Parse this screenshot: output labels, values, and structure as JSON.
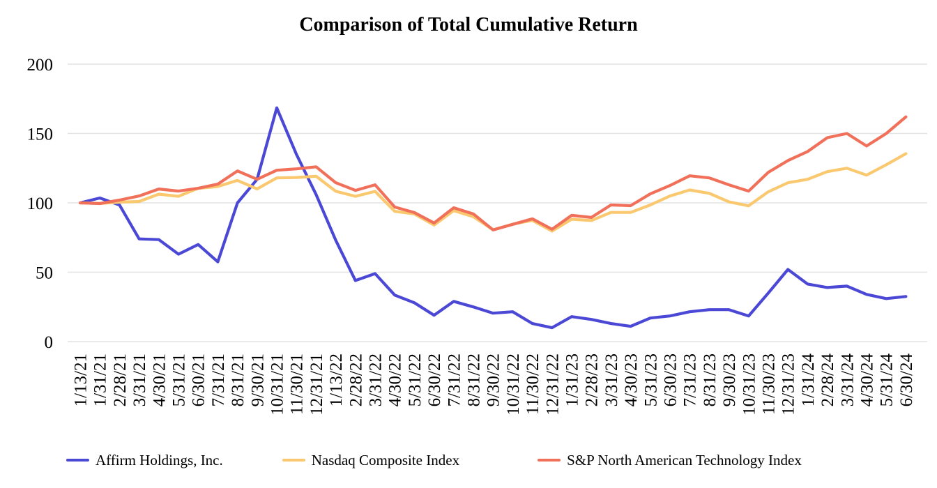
{
  "chart_data": {
    "type": "line",
    "title": "Comparison of Total Cumulative Return",
    "xlabel": "",
    "ylabel": "",
    "ylim": [
      0,
      200
    ],
    "y_ticks": [
      0,
      50,
      100,
      150,
      200
    ],
    "y_tick_labels": [
      "0",
      "50",
      "100",
      "150",
      "200"
    ],
    "grid": "horizontal-only",
    "grid_color": "#e4e4e4",
    "legend_position": "bottom",
    "x_labels": [
      "1/13/21",
      "1/31/21",
      "2/28/21",
      "3/31/21",
      "4/30/21",
      "5/31/21",
      "6/30/21",
      "7/31/21",
      "8/31/21",
      "9/30/21",
      "10/31/21",
      "11/30/21",
      "12/31/21",
      "1/13/22",
      "2/28/22",
      "3/31/22",
      "4/30/22",
      "5/31/22",
      "6/30/22",
      "7/31/22",
      "8/31/22",
      "9/30/22",
      "10/31/22",
      "11/30/22",
      "12/31/22",
      "1/31/23",
      "2/28/23",
      "3/31/23",
      "4/30/23",
      "5/31/23",
      "6/30/23",
      "7/31/23",
      "8/31/23",
      "9/30/23",
      "10/31/23",
      "11/30/23",
      "12/31/23",
      "1/31/24",
      "2/28/24",
      "3/31/24",
      "4/30/24",
      "5/31/24",
      "6/30/24"
    ],
    "series": [
      {
        "name": "Affirm Holdings, Inc.",
        "color": "#4b48d6",
        "values": [
          100,
          103.5,
          98.5,
          74,
          73.5,
          63,
          70,
          57.5,
          100,
          117,
          168.5,
          135,
          106,
          73,
          44,
          49,
          33.5,
          28,
          19,
          29,
          25,
          20.5,
          21.5,
          13,
          10,
          18,
          16,
          13,
          11,
          17,
          18.5,
          21.5,
          23,
          23,
          18.5,
          35,
          52,
          41.5,
          39,
          40,
          34,
          31,
          32.5
        ]
      },
      {
        "name": "Nasdaq Composite Index",
        "color": "#f9c86f",
        "values": [
          100,
          99.6,
          100.5,
          101,
          106.3,
          104.7,
          110.5,
          111.8,
          116.2,
          110.1,
          118,
          118.3,
          119.2,
          108.4,
          104.7,
          108.3,
          93.9,
          92,
          84,
          94.4,
          90,
          80.6,
          84.6,
          87.4,
          79.7,
          88.2,
          87.3,
          93.1,
          93.1,
          98.5,
          105,
          109.3,
          106.9,
          100.7,
          97.9,
          108,
          114.5,
          117,
          122.5,
          125,
          120,
          127.5,
          135.5
        ]
      },
      {
        "name": "S&P North American Technology Index",
        "color": "#f0705a",
        "values": [
          100,
          99.5,
          102,
          105,
          110,
          108.5,
          110.5,
          113.5,
          123,
          117,
          123.5,
          124.5,
          126,
          114.5,
          109,
          113,
          97,
          93,
          85.5,
          96.5,
          92,
          80.5,
          84.5,
          88.5,
          81,
          91,
          89.5,
          98.5,
          98,
          106.5,
          112.5,
          119.5,
          118,
          113,
          108.5,
          122,
          130.5,
          137,
          147,
          150,
          141,
          150,
          162
        ]
      }
    ]
  }
}
